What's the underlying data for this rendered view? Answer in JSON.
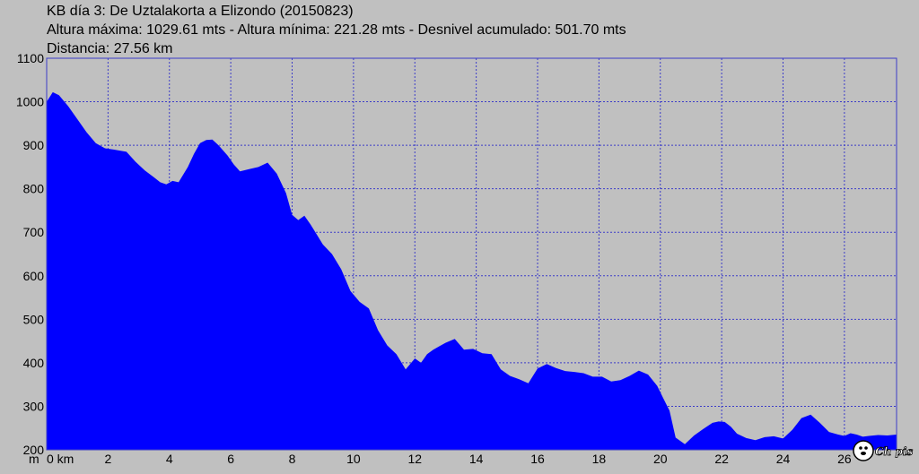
{
  "header": {
    "title": "KB día 3: De Uztalakorta a Elizondo (20150823)",
    "stats": "Altura máxima: 1029.61 mts - Altura mínima: 221.28 mts - Desnivel acumulado: 501.70 mts",
    "distance": "Distancia: 27.56 km"
  },
  "chart_data": {
    "type": "area",
    "title": "KB día 3: De Uztalakorta a Elizondo (20150823)",
    "xlabel": "km",
    "ylabel": "m",
    "x_unit": "km",
    "y_unit": "m",
    "xlim": [
      0,
      27.7
    ],
    "ylim": [
      200,
      1100
    ],
    "x_ticks": [
      0,
      2,
      4,
      6,
      8,
      10,
      12,
      14,
      16,
      18,
      20,
      22,
      24,
      26
    ],
    "x_tick_labels": [
      "0 km",
      "2",
      "4",
      "6",
      "8",
      "10",
      "12",
      "14",
      "16",
      "18",
      "20",
      "22",
      "24",
      "26"
    ],
    "y_ticks": [
      200,
      300,
      400,
      500,
      600,
      700,
      800,
      900,
      1000,
      1100
    ],
    "grid": true,
    "fill_color": "#0000ff",
    "background_color": "#c0c0c0",
    "grid_color": "#3c3cc8",
    "series": [
      {
        "x": [
          0.0,
          0.2,
          0.4,
          0.7,
          1.0,
          1.3,
          1.6,
          1.9,
          2.2,
          2.6,
          2.9,
          3.2,
          3.5,
          3.7,
          3.9,
          4.1,
          4.3,
          4.6,
          4.8,
          5.0,
          5.2,
          5.4,
          5.6,
          5.9,
          6.1,
          6.3,
          6.6,
          6.9,
          7.2,
          7.5,
          7.8,
          8.0,
          8.2,
          8.4,
          8.6,
          8.8,
          9.0,
          9.3,
          9.6,
          9.9,
          10.2,
          10.5,
          10.8,
          11.1,
          11.4,
          11.7,
          12.0,
          12.2,
          12.4,
          12.6,
          12.8,
          13.0,
          13.3,
          13.6,
          13.9,
          14.2,
          14.5,
          14.8,
          15.1,
          15.4,
          15.7,
          16.0,
          16.3,
          16.6,
          16.9,
          17.2,
          17.5,
          17.8,
          18.1,
          18.4,
          18.7,
          19.0,
          19.3,
          19.6,
          19.9,
          20.1,
          20.3,
          20.5,
          20.8,
          21.1,
          21.4,
          21.7,
          21.9,
          22.1,
          22.3,
          22.5,
          22.8,
          23.1,
          23.4,
          23.7,
          24.0,
          24.3,
          24.6,
          24.9,
          25.2,
          25.5,
          25.8,
          26.0,
          26.2,
          26.4,
          26.6,
          26.8,
          27.1,
          27.4,
          27.7
        ],
        "y": [
          1000,
          1022,
          1015,
          990,
          960,
          930,
          905,
          893,
          890,
          885,
          862,
          842,
          826,
          815,
          810,
          818,
          815,
          850,
          880,
          905,
          912,
          913,
          900,
          876,
          856,
          840,
          845,
          850,
          860,
          835,
          790,
          740,
          728,
          738,
          718,
          695,
          672,
          650,
          615,
          565,
          540,
          525,
          475,
          440,
          420,
          385,
          410,
          400,
          420,
          430,
          438,
          446,
          455,
          430,
          432,
          422,
          420,
          385,
          370,
          362,
          353,
          387,
          397,
          388,
          381,
          379,
          376,
          368,
          368,
          357,
          360,
          370,
          382,
          373,
          347,
          318,
          290,
          228,
          213,
          233,
          248,
          262,
          265,
          264,
          253,
          237,
          227,
          222,
          229,
          231,
          226,
          246,
          273,
          281,
          262,
          241,
          235,
          232,
          238,
          235,
          230,
          232,
          234,
          233,
          235
        ]
      }
    ]
  },
  "logo": {
    "text": "Ch pis"
  }
}
